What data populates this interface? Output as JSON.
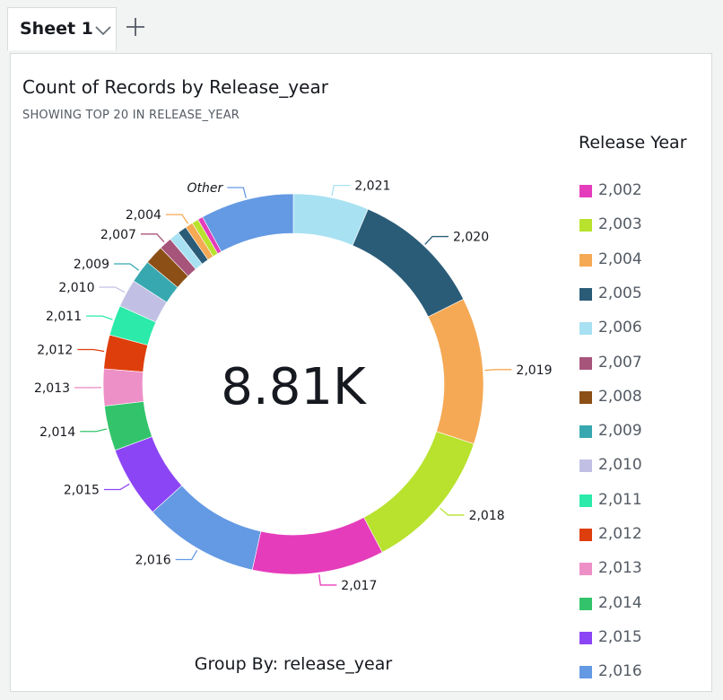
{
  "tabs": [
    {
      "label": "Sheet 1"
    }
  ],
  "chart_data": {
    "type": "pie",
    "style": "donut",
    "title": "Count of Records by Release_year",
    "subtitle": "SHOWING TOP 20 IN RELEASE_YEAR",
    "center_value": "8.81K",
    "group_by": "Group By: release_year",
    "legend_title": "Release Year",
    "legend_position": "right",
    "categories": [
      "2,021",
      "2,020",
      "2,019",
      "2,018",
      "2,017",
      "2,016",
      "2,015",
      "2,014",
      "2,013",
      "2,012",
      "2,011",
      "2,010",
      "2,009",
      "2,008",
      "2,007",
      "2,006",
      "2,005",
      "2,004",
      "2,003",
      "2,002",
      "Other"
    ],
    "values": [
      592,
      1032,
      1147,
      1121,
      1032,
      902,
      560,
      352,
      288,
      265,
      237,
      220,
      180,
      150,
      100,
      80,
      70,
      60,
      52,
      40,
      730
    ],
    "colors": [
      "#a8e1f2",
      "#2a5c78",
      "#f5a954",
      "#b8e22e",
      "#e53cbb",
      "#6499e3",
      "#8c45f5",
      "#33c46b",
      "#ed90c7",
      "#de3e0c",
      "#2ceaa9",
      "#c1c0e4",
      "#38a8b0",
      "#8c4f16",
      "#a7547b",
      "#a8e1f2",
      "#2a5c78",
      "#f5a954",
      "#b8e22e",
      "#e53cbb",
      "#6499e3"
    ],
    "legend": [
      {
        "label": "2,002",
        "color": "#e53cbb"
      },
      {
        "label": "2,003",
        "color": "#b8e22e"
      },
      {
        "label": "2,004",
        "color": "#f5a954"
      },
      {
        "label": "2,005",
        "color": "#2a5c78"
      },
      {
        "label": "2,006",
        "color": "#a8e1f2"
      },
      {
        "label": "2,007",
        "color": "#a7547b"
      },
      {
        "label": "2,008",
        "color": "#8c4f16"
      },
      {
        "label": "2,009",
        "color": "#38a8b0"
      },
      {
        "label": "2,010",
        "color": "#c1c0e4"
      },
      {
        "label": "2,011",
        "color": "#2ceaa9"
      },
      {
        "label": "2,012",
        "color": "#de3e0c"
      },
      {
        "label": "2,013",
        "color": "#ed90c7"
      },
      {
        "label": "2,014",
        "color": "#33c46b"
      },
      {
        "label": "2,015",
        "color": "#8c45f5"
      },
      {
        "label": "2,016",
        "color": "#6499e3"
      }
    ],
    "labeled": [
      "2,021",
      "2,020",
      "2,019",
      "2,018",
      "2,017",
      "2,016",
      "2,015",
      "2,014",
      "2,013",
      "2,012",
      "2,011",
      "2,010",
      "2,009",
      "2,007",
      "2,004",
      "Other"
    ]
  }
}
